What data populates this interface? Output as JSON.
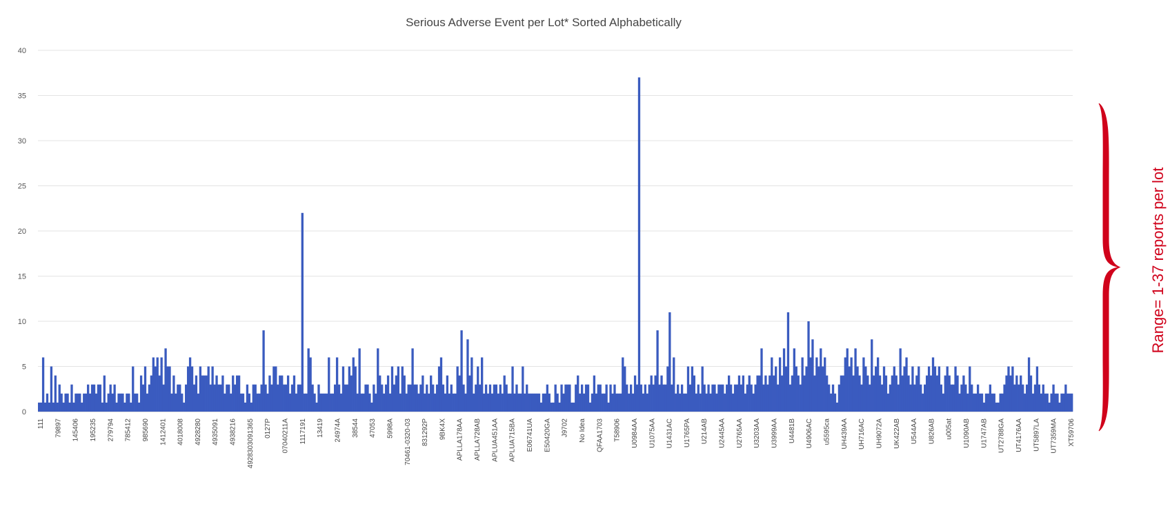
{
  "chart_data": {
    "type": "bar",
    "title": "Serious Adverse Event per Lot* Sorted Alphabetically",
    "xlabel": "",
    "ylabel": "",
    "ylim": [
      0,
      40
    ],
    "yticks": [
      0,
      5,
      10,
      15,
      20,
      25,
      30,
      35,
      40
    ],
    "grid": "horizontal",
    "bar_color": "#3a5bbf",
    "tick_labels": [
      "111",
      "79897",
      "145406",
      "195235",
      "279794",
      "785412",
      "985690",
      "1412401",
      "4018008",
      "4928280",
      "4935091",
      "4938216",
      "4928303091365",
      "0127P",
      "07040211A",
      "1117191",
      "13419",
      "24974A",
      "38544",
      "47053",
      "5998A",
      "70461-0320-03",
      "831292P",
      "9BK4X",
      "APLLA178AA",
      "APLLA728AB",
      "APLUA451AA",
      "APLUA715BA",
      "E06741UA",
      "E50420GA",
      "J9702",
      "No Idea",
      "QFAA1703",
      "T58906",
      "U0984AA",
      "U1075AA",
      "U1431AC",
      "U1765PA",
      "U214AB",
      "U2445AA",
      "U2765AA",
      "U3203AA",
      "U3999AA",
      "U4481B",
      "U4906AC",
      "u5595ca",
      "UH439AA",
      "UH716AC",
      "UH9072A",
      "UK422AB",
      "U544AA",
      "U826AB",
      "u005at",
      "U1090AB",
      "U1747AB",
      "UT2788GA",
      "UT4176AA",
      "UT5897LA",
      "UT7359MA",
      "XT59706"
    ],
    "values": [
      1,
      1,
      6,
      1,
      2,
      1,
      5,
      1,
      4,
      1,
      3,
      2,
      1,
      2,
      2,
      1,
      3,
      1,
      2,
      2,
      2,
      1,
      2,
      2,
      3,
      2,
      3,
      3,
      2,
      3,
      3,
      1,
      4,
      1,
      2,
      3,
      2,
      3,
      1,
      2,
      2,
      2,
      1,
      2,
      2,
      1,
      5,
      2,
      2,
      1,
      4,
      3,
      5,
      2,
      3,
      4,
      6,
      5,
      6,
      4,
      6,
      3,
      7,
      5,
      5,
      2,
      4,
      2,
      3,
      3,
      2,
      1,
      3,
      5,
      6,
      5,
      3,
      4,
      2,
      5,
      4,
      4,
      4,
      5,
      3,
      5,
      3,
      4,
      3,
      3,
      4,
      2,
      3,
      3,
      2,
      4,
      3,
      4,
      4,
      2,
      2,
      1,
      3,
      2,
      1,
      3,
      3,
      2,
      2,
      3,
      9,
      3,
      2,
      4,
      3,
      5,
      5,
      3,
      4,
      4,
      3,
      3,
      4,
      2,
      3,
      4,
      2,
      3,
      3,
      22,
      2,
      2,
      7,
      6,
      3,
      2,
      1,
      3,
      2,
      2,
      2,
      2,
      6,
      2,
      2,
      3,
      6,
      3,
      2,
      5,
      3,
      3,
      5,
      4,
      6,
      5,
      2,
      7,
      2,
      2,
      3,
      3,
      2,
      1,
      3,
      2,
      7,
      4,
      3,
      2,
      3,
      4,
      2,
      5,
      3,
      4,
      5,
      2,
      5,
      4,
      2,
      3,
      3,
      7,
      3,
      3,
      2,
      3,
      4,
      2,
      3,
      2,
      4,
      3,
      2,
      3,
      5,
      6,
      3,
      2,
      4,
      2,
      3,
      2,
      2,
      5,
      4,
      9,
      3,
      2,
      8,
      4,
      6,
      2,
      3,
      5,
      3,
      6,
      2,
      3,
      2,
      3,
      2,
      3,
      3,
      2,
      3,
      2,
      4,
      3,
      2,
      2,
      5,
      2,
      3,
      2,
      2,
      5,
      2,
      3,
      2,
      2,
      2,
      2,
      2,
      2,
      1,
      2,
      2,
      3,
      2,
      1,
      1,
      3,
      2,
      1,
      3,
      2,
      3,
      3,
      3,
      1,
      1,
      3,
      4,
      2,
      3,
      2,
      3,
      3,
      1,
      2,
      4,
      2,
      3,
      3,
      2,
      2,
      3,
      1,
      3,
      2,
      3,
      2,
      2,
      2,
      6,
      5,
      3,
      2,
      3,
      2,
      4,
      3,
      37,
      3,
      2,
      3,
      2,
      3,
      4,
      3,
      4,
      9,
      3,
      4,
      3,
      3,
      5,
      11,
      3,
      6,
      2,
      3,
      2,
      3,
      2,
      2,
      5,
      3,
      5,
      4,
      2,
      3,
      2,
      5,
      3,
      2,
      3,
      2,
      3,
      3,
      2,
      3,
      3,
      3,
      2,
      3,
      4,
      3,
      2,
      3,
      3,
      4,
      3,
      4,
      2,
      3,
      4,
      3,
      2,
      3,
      4,
      4,
      7,
      3,
      4,
      3,
      4,
      6,
      4,
      5,
      3,
      6,
      4,
      7,
      5,
      11,
      3,
      4,
      7,
      5,
      4,
      3,
      6,
      4,
      5,
      10,
      6,
      8,
      4,
      6,
      5,
      7,
      5,
      6,
      4,
      3,
      2,
      3,
      2,
      1,
      3,
      4,
      4,
      6,
      7,
      5,
      6,
      4,
      7,
      5,
      4,
      3,
      6,
      5,
      4,
      3,
      8,
      4,
      5,
      6,
      4,
      3,
      5,
      4,
      2,
      3,
      4,
      5,
      4,
      3,
      7,
      4,
      5,
      6,
      4,
      3,
      5,
      3,
      4,
      5,
      3,
      2,
      3,
      4,
      5,
      4,
      6,
      5,
      4,
      5,
      3,
      2,
      4,
      5,
      4,
      3,
      3,
      5,
      4,
      2,
      3,
      4,
      3,
      2,
      5,
      3,
      2,
      2,
      3,
      2,
      2,
      1,
      2,
      2,
      3,
      2,
      2,
      1,
      1,
      2,
      2,
      3,
      4,
      5,
      4,
      5,
      3,
      4,
      3,
      4,
      3,
      2,
      3,
      6,
      4,
      2,
      3,
      5,
      3,
      2,
      3,
      2,
      2,
      1,
      2,
      3,
      2,
      2,
      1,
      2,
      2,
      3,
      2,
      2,
      2
    ]
  },
  "annotation": {
    "text": "Range= 1-37 reports per lot",
    "color": "#d0021b"
  }
}
